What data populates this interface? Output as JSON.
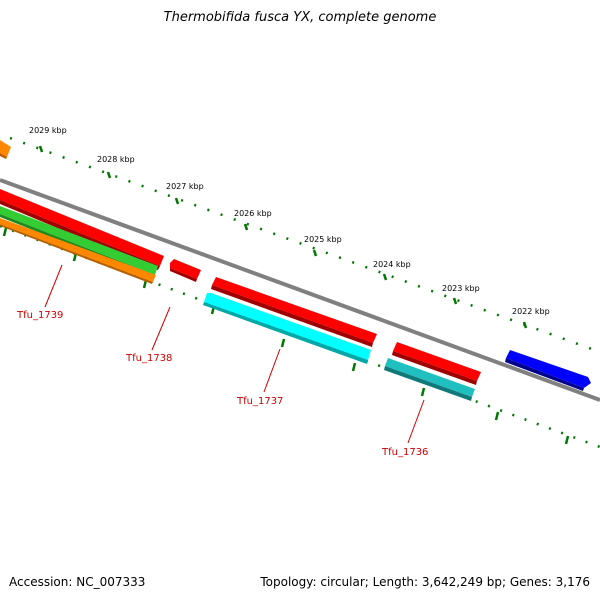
{
  "title": "Thermobifida fusca YX, complete genome",
  "footer": {
    "accession": "Accession: NC_007333",
    "summary": "Topology: circular; Length: 3,642,249 bp; Genes: 3,176"
  },
  "ticks": [
    "2029 kbp",
    "2028 kbp",
    "2027 kbp",
    "2026 kbp",
    "2025 kbp",
    "2024 kbp",
    "2023 kbp",
    "2022 kbp"
  ],
  "genes": [
    {
      "label": "Tfu_1739"
    },
    {
      "label": "Tfu_1738"
    },
    {
      "label": "Tfu_1737"
    },
    {
      "label": "Tfu_1736"
    }
  ],
  "colors": {
    "backbone": "#808080",
    "forward_cds": "#ff0000",
    "reverse_cds": "#00ffff",
    "reverse_cds_2": "#20c0c0",
    "green_feature": "#33cc33",
    "orange_feature": "#ff8800",
    "blue_feature": "#0000ff",
    "tick": "#007700",
    "label": "#cc0000"
  }
}
